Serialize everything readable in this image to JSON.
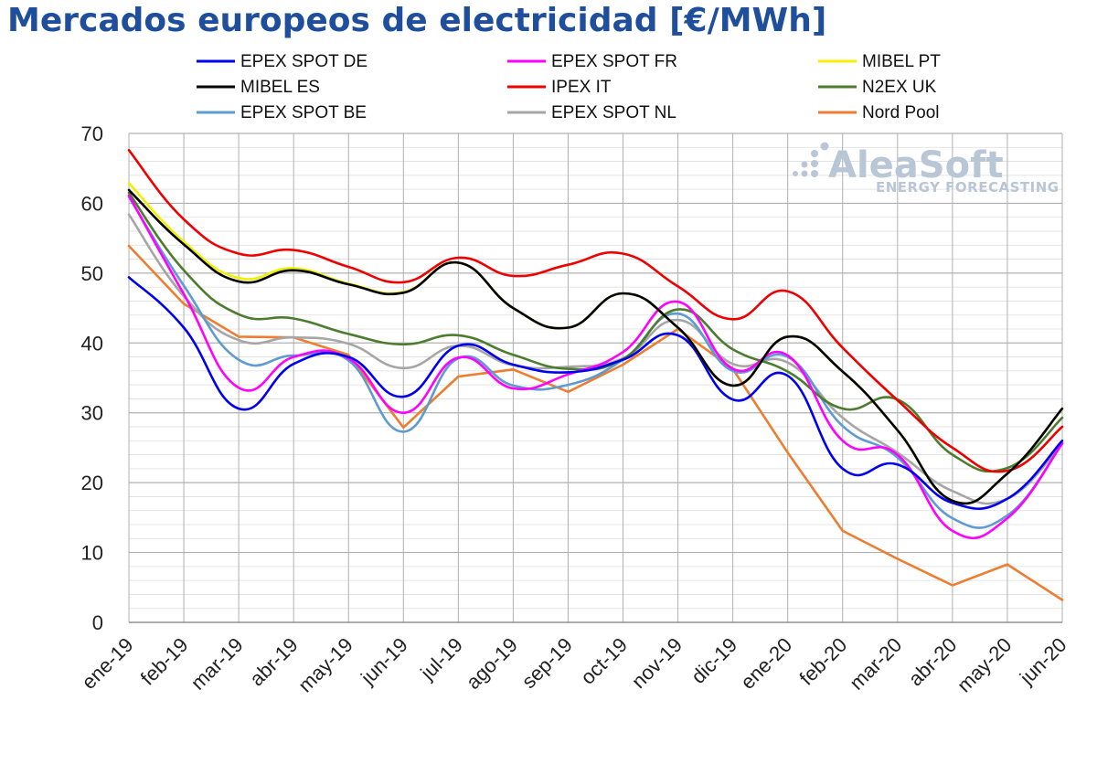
{
  "chart_data": {
    "type": "line",
    "title": "Mercados europeos de electricidad [€/MWh]",
    "xlabel": "",
    "ylabel": "",
    "ylim": [
      0,
      70
    ],
    "yticks": [
      0,
      10,
      20,
      30,
      40,
      50,
      60,
      70
    ],
    "grid": true,
    "legend_position": "top",
    "categories": [
      "ene-19",
      "feb-19",
      "mar-19",
      "abr-19",
      "may-19",
      "jun-19",
      "jul-19",
      "ago-19",
      "sep-19",
      "oct-19",
      "nov-19",
      "dic-19",
      "ene-20",
      "feb-20",
      "mar-20",
      "abr-20",
      "may-20",
      "jun-20"
    ],
    "series": [
      {
        "name": "EPEX SPOT DE",
        "color": "#0000ee",
        "values": [
          49.4,
          42.2,
          30.6,
          37.0,
          38.0,
          32.3,
          39.6,
          36.9,
          35.8,
          37.6,
          41.1,
          31.9,
          35.3,
          22.0,
          22.6,
          17.1,
          17.7,
          26.0
        ]
      },
      {
        "name": "EPEX SPOT FR",
        "color": "#ff00ff",
        "values": [
          61.1,
          47.0,
          33.6,
          38.0,
          37.8,
          30.0,
          37.9,
          33.5,
          35.5,
          38.7,
          45.9,
          36.3,
          38.2,
          26.0,
          24.0,
          13.1,
          14.9,
          25.6
        ]
      },
      {
        "name": "MIBEL PT",
        "color": "#f0f000",
        "values": [
          62.9,
          54.5,
          49.3,
          50.7,
          48.5,
          47.3,
          51.5,
          45.0,
          42.2,
          47.1,
          42.2,
          33.9,
          40.9,
          35.9,
          27.5,
          17.4,
          21.3,
          30.6
        ]
      },
      {
        "name": "MIBEL ES",
        "color": "#000000",
        "values": [
          61.9,
          54.1,
          48.8,
          50.4,
          48.4,
          47.2,
          51.5,
          45.0,
          42.2,
          47.1,
          42.2,
          33.9,
          40.9,
          35.9,
          27.5,
          17.4,
          21.3,
          30.6
        ]
      },
      {
        "name": "IPEX IT",
        "color": "#ee0000",
        "values": [
          67.6,
          57.7,
          52.8,
          53.3,
          50.9,
          48.7,
          52.2,
          49.6,
          51.2,
          52.8,
          48.1,
          43.4,
          47.4,
          39.3,
          31.8,
          25.0,
          21.7,
          28.0
        ]
      },
      {
        "name": "N2EX UK",
        "color": "#4c7c2e",
        "values": [
          61.5,
          50.4,
          44.1,
          43.5,
          41.3,
          39.8,
          41.1,
          38.3,
          36.3,
          37.7,
          44.8,
          39.1,
          35.9,
          30.6,
          31.9,
          24.0,
          22.1,
          29.3
        ]
      },
      {
        "name": "EPEX SPOT BE",
        "color": "#5d9bd1",
        "values": [
          60.9,
          48.2,
          37.6,
          38.2,
          37.5,
          27.3,
          37.8,
          33.9,
          34.0,
          37.6,
          44.2,
          36.0,
          38.0,
          28.1,
          23.6,
          14.9,
          15.3,
          25.6
        ]
      },
      {
        "name": "EPEX SPOT NL",
        "color": "#a6a6a6",
        "values": [
          58.4,
          46.7,
          40.4,
          40.8,
          39.9,
          36.4,
          39.6,
          36.8,
          36.6,
          37.8,
          43.3,
          37.0,
          37.2,
          29.3,
          24.3,
          18.8,
          17.7,
          25.6
        ]
      },
      {
        "name": "Nord Pool",
        "color": "#ed7d31",
        "values": [
          53.9,
          45.6,
          40.9,
          40.8,
          38.3,
          27.9,
          35.2,
          36.2,
          33.0,
          36.9,
          42.0,
          36.3,
          24.3,
          13.1,
          9.1,
          5.3,
          8.3,
          3.2
        ]
      }
    ],
    "legend_layout": [
      [
        "EPEX SPOT DE",
        "EPEX SPOT FR",
        "MIBEL PT"
      ],
      [
        "MIBEL ES",
        "IPEX IT",
        "N2EX UK"
      ],
      [
        "EPEX SPOT BE",
        "EPEX SPOT NL",
        "Nord Pool"
      ]
    ]
  },
  "logo": {
    "name": "AleaSoft",
    "tagline": "ENERGY FORECASTING"
  }
}
